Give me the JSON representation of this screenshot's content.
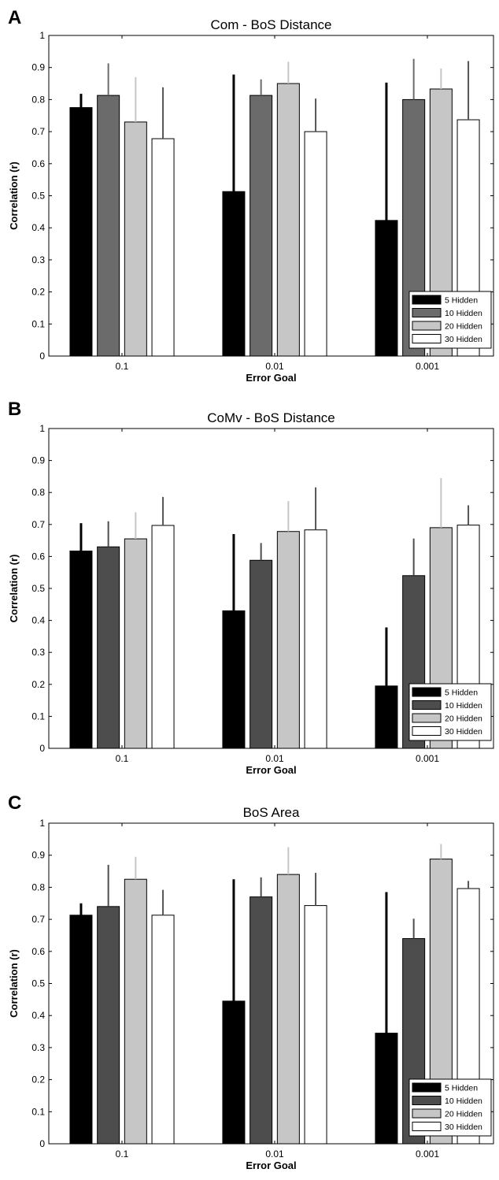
{
  "chart_data": [
    {
      "panel_label": "A",
      "type": "bar",
      "title": "Com - BoS Distance",
      "xlabel": "Error Goal",
      "ylabel": "Correlation (r)",
      "categories": [
        "0.1",
        "0.01",
        "0.001"
      ],
      "ylim": [
        0,
        1
      ],
      "yticks": [
        "0",
        "0.1",
        "0.2",
        "0.3",
        "0.4",
        "0.5",
        "0.6",
        "0.7",
        "0.8",
        "0.9",
        "1"
      ],
      "legend_position": "bottom-right",
      "series": [
        {
          "name": "5 Hidden",
          "color": "#000000",
          "values": [
            0.775,
            0.513,
            0.423
          ],
          "err_upper": [
            0.818,
            0.878,
            0.853
          ]
        },
        {
          "name": "10 Hidden",
          "color": "#6b6b6b",
          "values": [
            0.813,
            0.813,
            0.8
          ],
          "err_upper": [
            0.913,
            0.863,
            0.927
          ]
        },
        {
          "name": "20 Hidden",
          "color": "#c6c6c6",
          "values": [
            0.73,
            0.85,
            0.833
          ],
          "err_upper": [
            0.87,
            0.918,
            0.897
          ]
        },
        {
          "name": "30 Hidden",
          "color": "#ffffff",
          "values": [
            0.678,
            0.7,
            0.737
          ],
          "err_upper": [
            0.838,
            0.803,
            0.92
          ]
        }
      ]
    },
    {
      "panel_label": "B",
      "type": "bar",
      "title": "CoMv - BoS Distance",
      "xlabel": "Error Goal",
      "ylabel": "Correlation (r)",
      "categories": [
        "0.1",
        "0.01",
        "0.001"
      ],
      "ylim": [
        0,
        1
      ],
      "yticks": [
        "0",
        "0.1",
        "0.2",
        "0.3",
        "0.4",
        "0.5",
        "0.6",
        "0.7",
        "0.8",
        "0.9",
        "1"
      ],
      "legend_position": "bottom-right",
      "series": [
        {
          "name": "5 Hidden",
          "color": "#000000",
          "values": [
            0.617,
            0.43,
            0.195
          ],
          "err_upper": [
            0.704,
            0.67,
            0.378
          ]
        },
        {
          "name": "10 Hidden",
          "color": "#4d4d4d",
          "values": [
            0.63,
            0.588,
            0.54
          ],
          "err_upper": [
            0.71,
            0.642,
            0.656
          ]
        },
        {
          "name": "20 Hidden",
          "color": "#c6c6c6",
          "values": [
            0.655,
            0.678,
            0.69
          ],
          "err_upper": [
            0.738,
            0.773,
            0.845
          ]
        },
        {
          "name": "30 Hidden",
          "color": "#ffffff",
          "values": [
            0.697,
            0.683,
            0.698
          ],
          "err_upper": [
            0.786,
            0.816,
            0.76
          ]
        }
      ]
    },
    {
      "panel_label": "C",
      "type": "bar",
      "title": "BoS Area",
      "xlabel": "Error Goal",
      "ylabel": "Correlation (r)",
      "categories": [
        "0.1",
        "0.01",
        "0.001"
      ],
      "ylim": [
        0,
        1
      ],
      "yticks": [
        "0",
        "0.1",
        "0.2",
        "0.3",
        "0.4",
        "0.5",
        "0.6",
        "0.7",
        "0.8",
        "0.9",
        "1"
      ],
      "legend_position": "bottom-right",
      "series": [
        {
          "name": "5 Hidden",
          "color": "#000000",
          "values": [
            0.713,
            0.445,
            0.345
          ],
          "err_upper": [
            0.75,
            0.825,
            0.785
          ]
        },
        {
          "name": "10 Hidden",
          "color": "#4d4d4d",
          "values": [
            0.74,
            0.77,
            0.64
          ],
          "err_upper": [
            0.87,
            0.831,
            0.702
          ]
        },
        {
          "name": "20 Hidden",
          "color": "#c6c6c6",
          "values": [
            0.825,
            0.84,
            0.888
          ],
          "err_upper": [
            0.895,
            0.925,
            0.935
          ]
        },
        {
          "name": "30 Hidden",
          "color": "#ffffff",
          "values": [
            0.713,
            0.743,
            0.796
          ],
          "err_upper": [
            0.792,
            0.845,
            0.82
          ]
        }
      ]
    }
  ]
}
